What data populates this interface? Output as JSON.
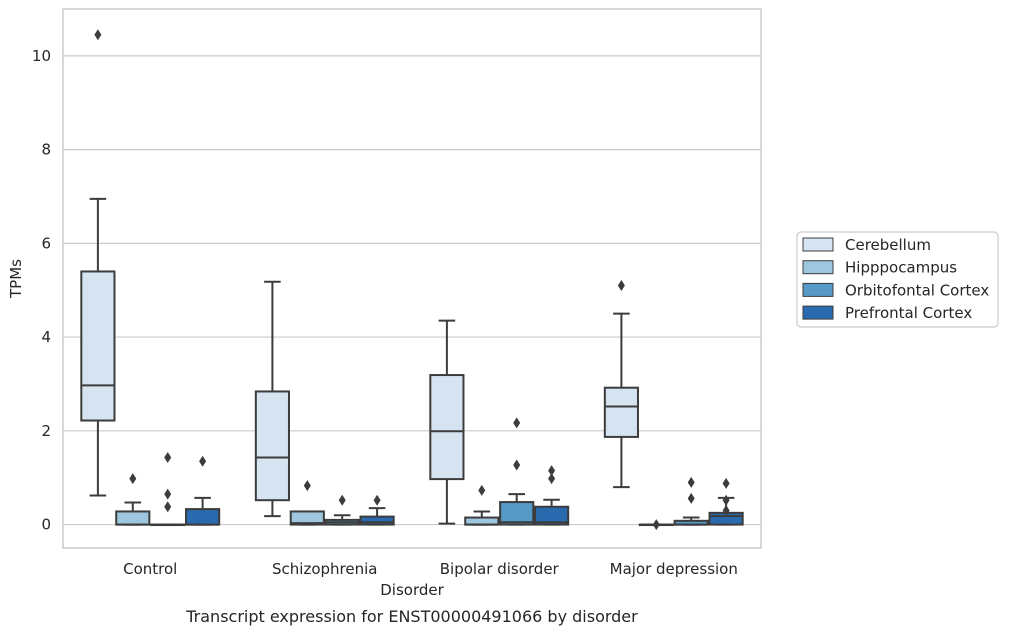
{
  "caption": "Transcript expression for ENST00000491066 by disorder",
  "chart_data": {
    "type": "boxplot",
    "xlabel": "Disorder",
    "ylabel": "TPMs",
    "ylim": [
      -0.5,
      11
    ],
    "yticks": [
      0,
      2,
      4,
      6,
      8,
      10
    ],
    "grid": "horizontal",
    "legend_position": "right",
    "categories": [
      "Control",
      "Schizophrenia",
      "Bipolar disorder",
      "Major depression"
    ],
    "series": [
      {
        "name": "Cerebellum",
        "color": "#d6e4f2",
        "boxes": [
          {
            "whislo": 0.62,
            "q1": 2.22,
            "med": 2.97,
            "q3": 5.4,
            "whishi": 6.95,
            "fliers": [
              10.45
            ]
          },
          {
            "whislo": 0.18,
            "q1": 0.52,
            "med": 1.43,
            "q3": 2.84,
            "whishi": 5.18,
            "fliers": []
          },
          {
            "whislo": 0.02,
            "q1": 0.97,
            "med": 1.99,
            "q3": 3.19,
            "whishi": 4.35,
            "fliers": []
          },
          {
            "whislo": 0.8,
            "q1": 1.87,
            "med": 2.52,
            "q3": 2.92,
            "whishi": 4.5,
            "fliers": [
              5.1
            ]
          }
        ]
      },
      {
        "name": "Hipppocampus",
        "color": "#9ec6de",
        "boxes": [
          {
            "whislo": 0.0,
            "q1": 0.0,
            "med": 0.0,
            "q3": 0.28,
            "whishi": 0.47,
            "fliers": [
              0.98
            ]
          },
          {
            "whislo": 0.0,
            "q1": 0.0,
            "med": 0.03,
            "q3": 0.28,
            "whishi": 0.28,
            "fliers": [
              0.83
            ]
          },
          {
            "whislo": 0.0,
            "q1": 0.0,
            "med": 0.0,
            "q3": 0.15,
            "whishi": 0.28,
            "fliers": [
              0.73
            ]
          },
          {
            "whislo": 0.0,
            "q1": 0.0,
            "med": 0.0,
            "q3": 0.0,
            "whishi": 0.0,
            "fliers": [
              0.0
            ]
          }
        ]
      },
      {
        "name": "Orbitofontal Cortex",
        "color": "#5799c7",
        "boxes": [
          {
            "whislo": 0.0,
            "q1": 0.0,
            "med": 0.0,
            "q3": 0.0,
            "whishi": 0.0,
            "fliers": [
              1.43,
              0.65,
              0.38
            ]
          },
          {
            "whislo": 0.0,
            "q1": 0.0,
            "med": 0.05,
            "q3": 0.1,
            "whishi": 0.2,
            "fliers": [
              0.52
            ]
          },
          {
            "whislo": 0.0,
            "q1": 0.0,
            "med": 0.05,
            "q3": 0.48,
            "whishi": 0.65,
            "fliers": [
              2.17,
              1.27
            ]
          },
          {
            "whislo": 0.0,
            "q1": 0.0,
            "med": 0.0,
            "q3": 0.08,
            "whishi": 0.15,
            "fliers": [
              0.9,
              0.56
            ]
          }
        ]
      },
      {
        "name": "Prefrontal Cortex",
        "color": "#2a6aae",
        "boxes": [
          {
            "whislo": 0.0,
            "q1": 0.0,
            "med": 0.0,
            "q3": 0.33,
            "whishi": 0.57,
            "fliers": [
              1.35
            ]
          },
          {
            "whislo": 0.0,
            "q1": 0.0,
            "med": 0.05,
            "q3": 0.17,
            "whishi": 0.35,
            "fliers": [
              0.52
            ]
          },
          {
            "whislo": 0.0,
            "q1": 0.0,
            "med": 0.05,
            "q3": 0.38,
            "whishi": 0.53,
            "fliers": [
              1.15,
              0.98
            ]
          },
          {
            "whislo": 0.0,
            "q1": 0.0,
            "med": 0.18,
            "q3": 0.25,
            "whishi": 0.57,
            "fliers": [
              0.88,
              0.52,
              0.3
            ]
          }
        ]
      }
    ]
  }
}
